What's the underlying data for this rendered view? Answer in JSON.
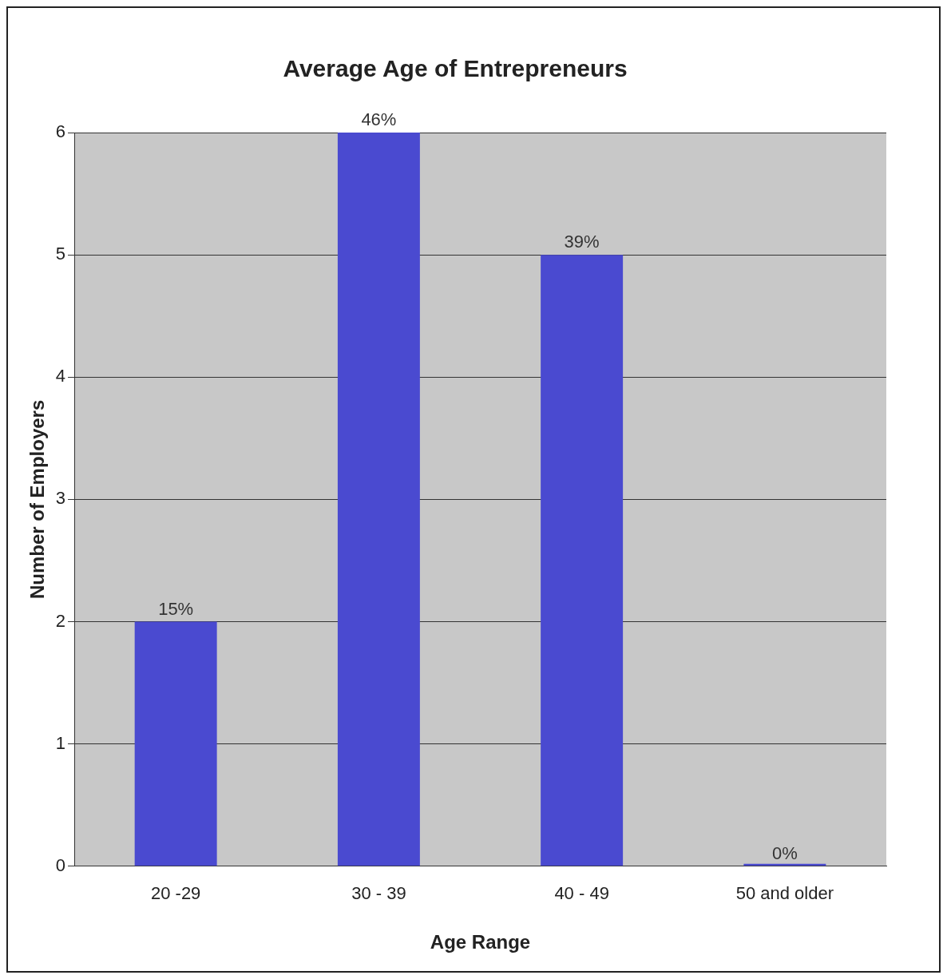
{
  "chart_data": {
    "type": "bar",
    "title": "Average Age of Entrepreneurs",
    "xlabel": "Age Range",
    "ylabel": "Number of Employers",
    "categories": [
      "20 -29",
      "30 - 39",
      "40 - 49",
      "50 and older"
    ],
    "values": [
      2,
      6,
      5,
      0
    ],
    "color": "#4a4ad0",
    "annotations": [
      {
        "text": "15%",
        "x": "20 -29",
        "y": 2
      },
      {
        "text": "46%",
        "x": "30 - 39",
        "y": 6
      },
      {
        "text": "39%",
        "x": "40 - 49",
        "y": 5
      },
      {
        "text": "0%",
        "x": "50 and older",
        "y": 0
      }
    ],
    "ylim": [
      0,
      6
    ],
    "yticks": [
      0,
      1,
      2,
      3,
      4,
      5,
      6
    ],
    "grid": "y",
    "legend": false
  }
}
